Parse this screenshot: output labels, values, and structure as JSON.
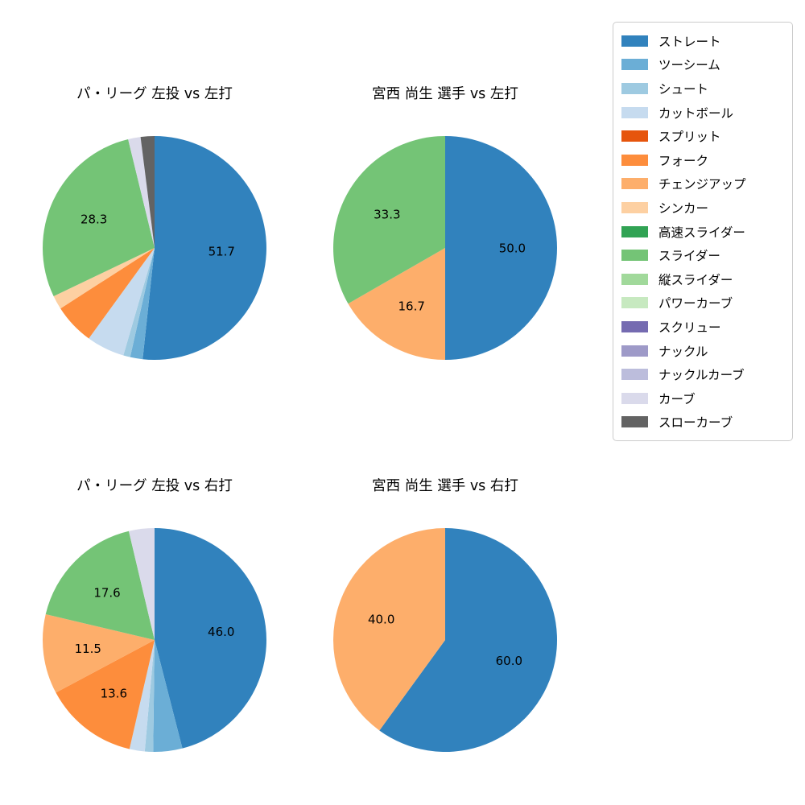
{
  "figure": {
    "background": "#ffffff"
  },
  "palette": {
    "ストレート": "#3182bd",
    "ツーシーム": "#6baed6",
    "シュート": "#9ecae1",
    "カットボール": "#c6dbef",
    "スプリット": "#e6550d",
    "フォーク": "#fd8d3c",
    "チェンジアップ": "#fdae6b",
    "シンカー": "#fdd0a2",
    "高速スライダー": "#31a354",
    "スライダー": "#74c476",
    "縦スライダー": "#a1d99b",
    "パワーカーブ": "#c7e9c0",
    "スクリュー": "#756bb1",
    "ナックル": "#9e9ac8",
    "ナックルカーブ": "#bcbddc",
    "カーブ": "#dadaeb",
    "スローカーブ": "#636363"
  },
  "legend": {
    "items": [
      "ストレート",
      "ツーシーム",
      "シュート",
      "カットボール",
      "スプリット",
      "フォーク",
      "チェンジアップ",
      "シンカー",
      "高速スライダー",
      "スライダー",
      "縦スライダー",
      "パワーカーブ",
      "スクリュー",
      "ナックル",
      "ナックルカーブ",
      "カーブ",
      "スローカーブ"
    ]
  },
  "chart_data": [
    {
      "type": "pie",
      "title": "パ・リーグ 左投 vs 左打",
      "start_angle": "top",
      "direction": "clockwise",
      "label_threshold_pct": 10,
      "slices": [
        {
          "name": "ストレート",
          "value": 51.7,
          "label": "51.7"
        },
        {
          "name": "ツーシーム",
          "value": 1.8,
          "label": ""
        },
        {
          "name": "シュート",
          "value": 1.0,
          "label": ""
        },
        {
          "name": "カットボール",
          "value": 5.5,
          "label": ""
        },
        {
          "name": "フォーク",
          "value": 5.9,
          "label": ""
        },
        {
          "name": "シンカー",
          "value": 2.0,
          "label": ""
        },
        {
          "name": "スライダー",
          "value": 28.3,
          "label": "28.3"
        },
        {
          "name": "カーブ",
          "value": 1.8,
          "label": ""
        },
        {
          "name": "スローカーブ",
          "value": 2.0,
          "label": ""
        }
      ]
    },
    {
      "type": "pie",
      "title": "宮西 尚生 選手 vs 左打",
      "start_angle": "top",
      "direction": "clockwise",
      "label_threshold_pct": 10,
      "slices": [
        {
          "name": "ストレート",
          "value": 50.0,
          "label": "50.0"
        },
        {
          "name": "チェンジアップ",
          "value": 16.7,
          "label": "16.7"
        },
        {
          "name": "スライダー",
          "value": 33.3,
          "label": "33.3"
        }
      ]
    },
    {
      "type": "pie",
      "title": "パ・リーグ 左投 vs 右打",
      "start_angle": "top",
      "direction": "clockwise",
      "label_threshold_pct": 10,
      "slices": [
        {
          "name": "ストレート",
          "value": 46.0,
          "label": "46.0"
        },
        {
          "name": "ツーシーム",
          "value": 4.2,
          "label": ""
        },
        {
          "name": "シュート",
          "value": 1.2,
          "label": ""
        },
        {
          "name": "カットボール",
          "value": 2.2,
          "label": ""
        },
        {
          "name": "フォーク",
          "value": 13.6,
          "label": "13.6"
        },
        {
          "name": "チェンジアップ",
          "value": 11.5,
          "label": "11.5"
        },
        {
          "name": "スライダー",
          "value": 17.6,
          "label": "17.6"
        },
        {
          "name": "カーブ",
          "value": 3.7,
          "label": ""
        }
      ]
    },
    {
      "type": "pie",
      "title": "宮西 尚生 選手 vs 右打",
      "start_angle": "top",
      "direction": "clockwise",
      "label_threshold_pct": 10,
      "slices": [
        {
          "name": "ストレート",
          "value": 60.0,
          "label": "60.0"
        },
        {
          "name": "チェンジアップ",
          "value": 40.0,
          "label": "40.0"
        }
      ]
    }
  ]
}
